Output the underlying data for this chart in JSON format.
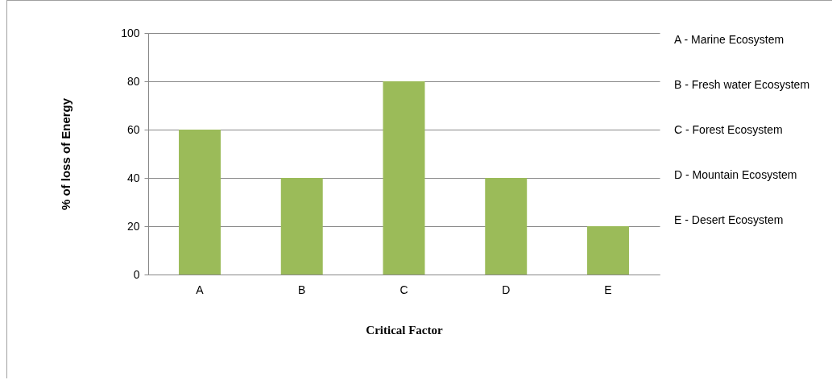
{
  "chart_data": {
    "type": "bar",
    "xlabel": "Critical Factor",
    "ylabel": "% of loss of Energy",
    "categories": [
      "A",
      "B",
      "C",
      "D",
      "E"
    ],
    "values": [
      60,
      40,
      80,
      40,
      20
    ],
    "color": "#9bbb59",
    "ylim": [
      0,
      100
    ],
    "yticks": [
      0,
      20,
      40,
      60,
      80,
      100
    ],
    "grid": "y",
    "annotations": [
      "A - Marine Ecosystem",
      "B - Fresh water Ecosystem",
      "C - Forest Ecosystem",
      "D - Mountain Ecosystem",
      "E - Desert Ecosystem"
    ]
  }
}
